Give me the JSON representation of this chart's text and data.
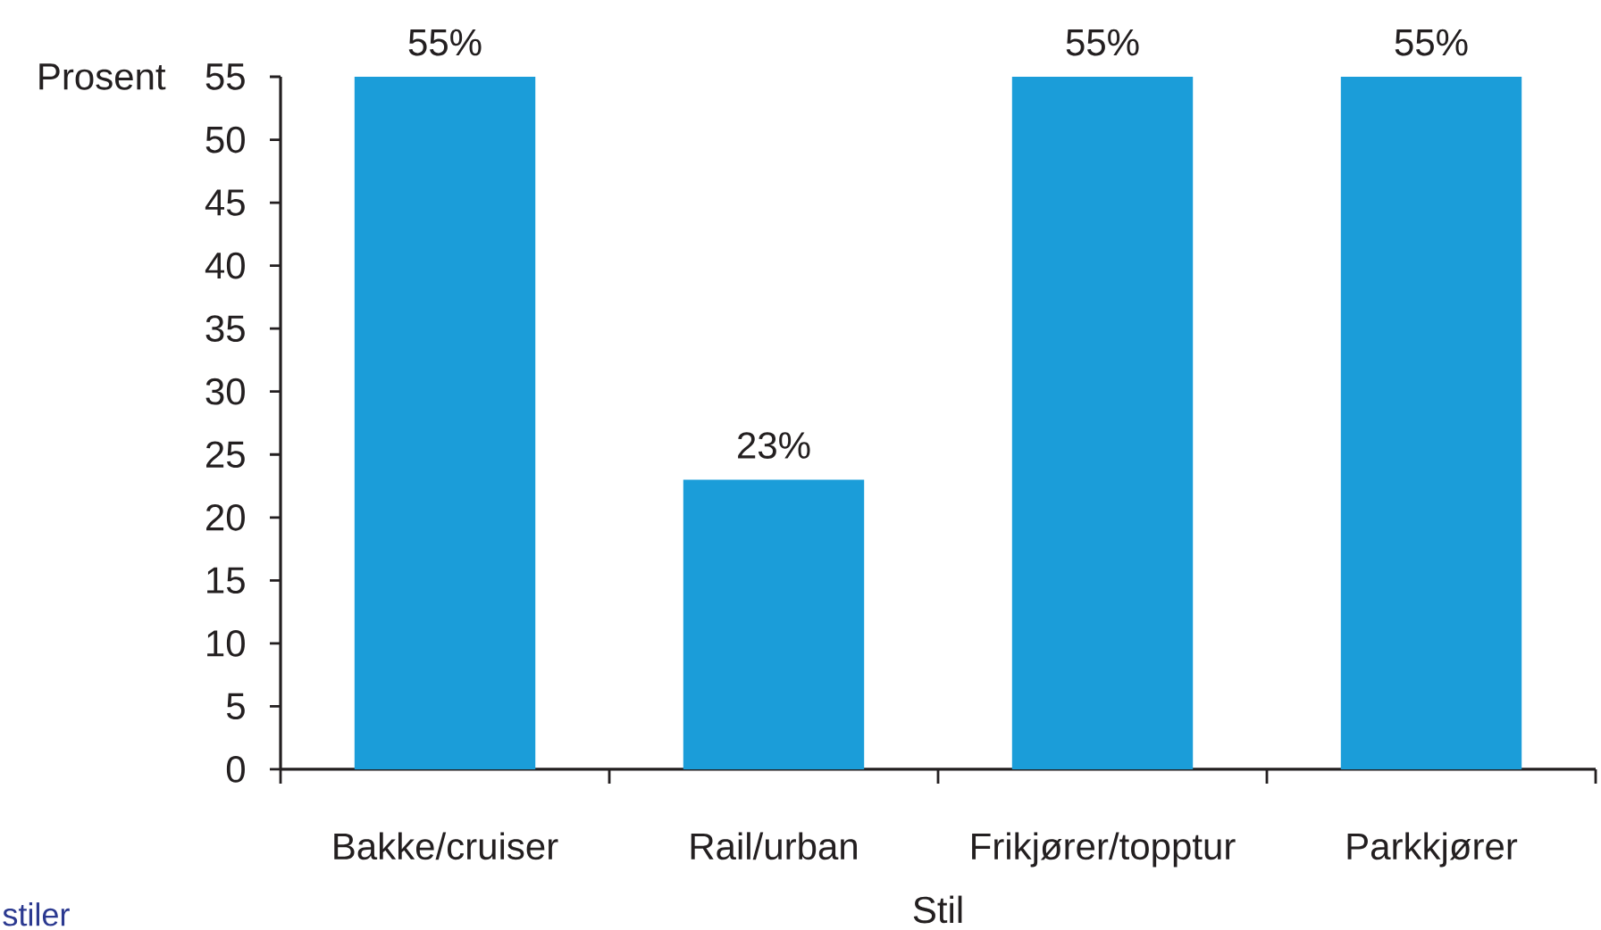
{
  "chart_data": {
    "type": "bar",
    "categories": [
      "Bakke/cruiser",
      "Rail/urban",
      "Frikjører/topptur",
      "Parkkjører"
    ],
    "values": [
      55,
      23,
      55,
      55
    ],
    "value_labels": [
      "55%",
      "23%",
      "55%",
      "55%"
    ],
    "color": "#1b9dd9",
    "xlabel": "Stil",
    "ylabel": "Prosent",
    "ylim": [
      0,
      55
    ],
    "yticks": [
      0,
      5,
      10,
      15,
      20,
      25,
      30,
      35,
      40,
      45,
      50,
      55
    ],
    "annotations": [
      "stiler"
    ]
  }
}
